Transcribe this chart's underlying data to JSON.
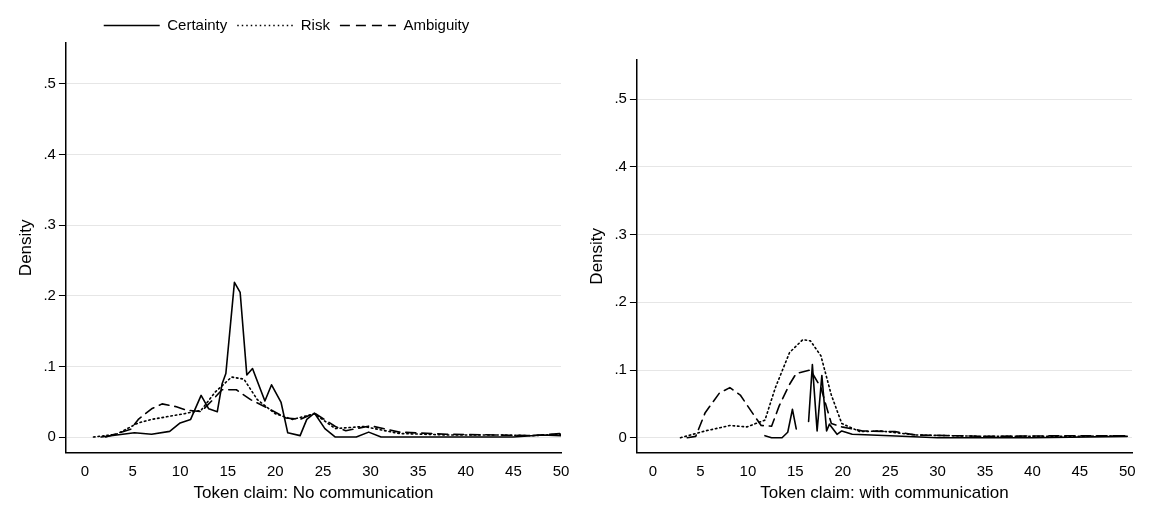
{
  "chart_data": [
    {
      "type": "line",
      "xlabel": "Token claim: No communication",
      "ylabel": "Density",
      "xlim": [
        -2,
        50
      ],
      "ylim": [
        -0.022,
        0.558
      ],
      "xticks": [
        0,
        5,
        10,
        15,
        20,
        25,
        30,
        35,
        40,
        45,
        50
      ],
      "yticks": [
        0,
        {
          "value": 0.1,
          "label": ".1"
        },
        {
          "value": 0.2,
          "label": ".2"
        },
        {
          "value": 0.3,
          "label": ".3"
        },
        {
          "value": 0.4,
          "label": ".4"
        },
        {
          "value": 0.5,
          "label": ".5"
        }
      ],
      "grid": "y",
      "legend": "top",
      "marker": "none",
      "series": [
        {
          "name": "Certainty",
          "color": "#000000",
          "line_style": "solid",
          "x": [
            1.7,
            5.2,
            7,
            8.9,
            10,
            11.1,
            12.2,
            13,
            13.9,
            14.4,
            14.8,
            15.7,
            16.3,
            17,
            17.6,
            18.9,
            19.6,
            20.6,
            21.3,
            22.6,
            23.3,
            24.1,
            25.2,
            26.3,
            28.5,
            29.8,
            31.1,
            35,
            40,
            45,
            48,
            50
          ],
          "values": [
            0,
            0.006,
            0.004,
            0.008,
            0.02,
            0.025,
            0.059,
            0.04,
            0.036,
            0.075,
            0.09,
            0.219,
            0.205,
            0.088,
            0.097,
            0.051,
            0.074,
            0.049,
            0.006,
            0.002,
            0.025,
            0.034,
            0.012,
            0,
            0,
            0.007,
            0,
            0,
            0,
            0,
            0.003,
            0.002
          ]
        },
        {
          "name": "Risk",
          "color": "#000000",
          "line_style": "dotted",
          "x": [
            0.9,
            3.3,
            5.6,
            7,
            10.4,
            12.2,
            13.7,
            15.4,
            16.7,
            18.1,
            20,
            21.8,
            24.1,
            26.3,
            29.3,
            33,
            38,
            43,
            47,
            50
          ],
          "values": [
            0,
            0.004,
            0.02,
            0.025,
            0.033,
            0.038,
            0.064,
            0.085,
            0.082,
            0.053,
            0.033,
            0.025,
            0.033,
            0.012,
            0.015,
            0.005,
            0.003,
            0.003,
            0.002,
            0.004
          ]
        },
        {
          "name": "Ambiguity",
          "color": "#000000",
          "line_style": "dashed",
          "x": [
            2.2,
            4.8,
            5.6,
            7,
            8.1,
            9.6,
            10.7,
            12.2,
            13.3,
            14.4,
            15.9,
            17.4,
            18.9,
            21.1,
            22.6,
            24.1,
            26.3,
            27.4,
            30,
            33,
            38,
            43,
            47,
            50
          ],
          "values": [
            0,
            0.011,
            0.025,
            0.04,
            0.047,
            0.043,
            0.038,
            0.036,
            0.051,
            0.067,
            0.067,
            0.053,
            0.043,
            0.027,
            0.025,
            0.034,
            0.015,
            0.009,
            0.016,
            0.007,
            0.004,
            0.003,
            0.002,
            0.005
          ]
        }
      ]
    },
    {
      "type": "line",
      "xlabel": "Token claim: with communication",
      "ylabel": "Density",
      "xlim": [
        -1.7,
        50.5
      ],
      "ylim": [
        -0.022,
        0.558
      ],
      "xticks": [
        0,
        5,
        10,
        15,
        20,
        25,
        30,
        35,
        40,
        45,
        50
      ],
      "yticks": [
        0,
        {
          "value": 0.1,
          "label": ".1"
        },
        {
          "value": 0.2,
          "label": ".2"
        },
        {
          "value": 0.3,
          "label": ".3"
        },
        {
          "value": 0.4,
          "label": ".4"
        },
        {
          "value": 0.5,
          "label": ".5"
        }
      ],
      "grid": "y",
      "marker": "none",
      "series": [
        {
          "color": "#000000",
          "line_style": "solid",
          "x": [
            11.8,
            12.5,
            13.6,
            14.2,
            14.7,
            15.1,
            15.4,
            15.8,
            16.2,
            16.4,
            16.8,
            17.3,
            17.8,
            18.3,
            18.6,
            19.4,
            19.9,
            21,
            25,
            30,
            40,
            50
          ],
          "values": [
            0.003,
            0,
            0,
            0.008,
            0.042,
            0.013,
            null,
            null,
            null,
            0.024,
            0.108,
            0.01,
            0.092,
            0.01,
            0.02,
            0.005,
            0.01,
            0.005,
            0.003,
            0,
            0,
            0.002
          ]
        },
        {
          "color": "#000000",
          "line_style": "dotted",
          "x": [
            2.9,
            5.5,
            8.1,
            9.9,
            11.8,
            12.9,
            14.4,
            15.8,
            16.6,
            17.7,
            18.8,
            19.9,
            21.8,
            24,
            27.7,
            35,
            45,
            50
          ],
          "values": [
            0,
            0.01,
            0.018,
            0.016,
            0.026,
            0.074,
            0.126,
            0.145,
            0.143,
            0.121,
            0.063,
            0.021,
            0.009,
            0.01,
            0.004,
            0.002,
            0.002,
            0.003
          ]
        },
        {
          "color": "#000000",
          "line_style": "dashed",
          "x": [
            3.6,
            4.5,
            5.5,
            7,
            8.1,
            9.2,
            10.7,
            11.4,
            12.5,
            13.3,
            14.4,
            15.1,
            16.6,
            17.7,
            18.8,
            19.9,
            22.1,
            25.5,
            27.7,
            35,
            45,
            50
          ],
          "values": [
            0,
            0.002,
            0.037,
            0.066,
            0.074,
            0.063,
            0.032,
            0.018,
            0.017,
            0.047,
            0.079,
            0.095,
            0.1,
            0.074,
            0.021,
            0.016,
            0.01,
            0.009,
            0.004,
            0.002,
            0.003,
            0.003
          ]
        }
      ]
    }
  ]
}
